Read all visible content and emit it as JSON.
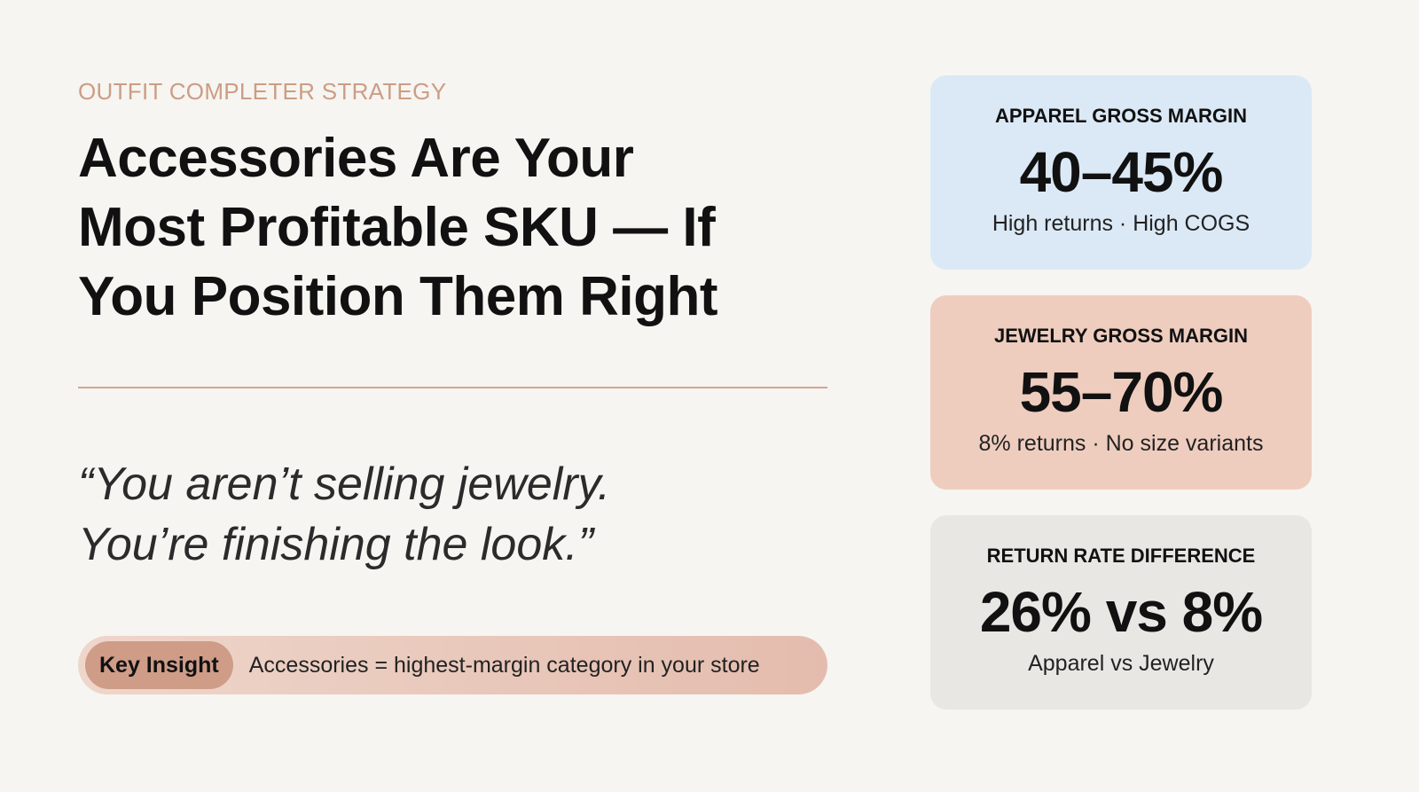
{
  "eyebrow": "OUTFIT COMPLETER STRATEGY",
  "title_lines": [
    "Accessories Are Your",
    "Most Profitable SKU — If",
    "You Position Them Right"
  ],
  "quote_lines": [
    "“You aren’t selling jewelry.",
    "You’re finishing the look.”"
  ],
  "insight": {
    "label": "Key Insight",
    "text": "Accessories = highest-margin category in your store"
  },
  "stats": [
    {
      "label": "APPAREL GROSS MARGIN",
      "value": "40–45%",
      "note": "High returns · High COGS"
    },
    {
      "label": "JEWELRY GROSS MARGIN",
      "value": "55–70%",
      "note": "8% returns · No size variants"
    },
    {
      "label": "RETURN RATE DIFFERENCE",
      "value": "26% vs 8%",
      "note": "Apparel vs Jewelry"
    }
  ]
}
